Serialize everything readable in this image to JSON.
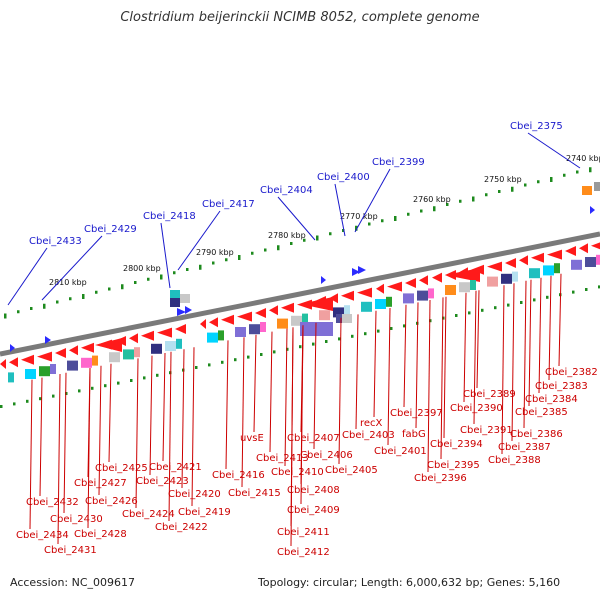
{
  "title": "Clostridium beijerinckii NCIMB 8052, complete genome",
  "footer": {
    "accession": "Accession: NC_009617",
    "summary": "Topology: circular; Length: 6,000,632 bp; Genes: 5,160"
  },
  "ruler_ticks": [
    "2740 kbp",
    "2750 kbp",
    "2760 kbp",
    "2770 kbp",
    "2780 kbp",
    "2790 kbp",
    "2800 kbp",
    "2810 kbp"
  ],
  "upper_labels": [
    "Cbei_2375",
    "Cbei_2399",
    "Cbei_2400",
    "Cbei_2404",
    "Cbei_2417",
    "Cbei_2418",
    "Cbei_2429",
    "Cbei_2433"
  ],
  "lower_labels": [
    "Cbei_2382",
    "Cbei_2383",
    "Cbei_2384",
    "Cbei_2385",
    "Cbei_2386",
    "Cbei_2387",
    "Cbei_2388",
    "Cbei_2389",
    "Cbei_2390",
    "Cbei_2391",
    "Cbei_2394",
    "Cbei_2395",
    "Cbei_2396",
    "fabG",
    "Cbei_2397",
    "recX",
    "Cbei_2403",
    "Cbei_2401",
    "Cbei_2405",
    "Cbei_2406",
    "Cbei_2407",
    "Cbei_2408",
    "Cbei_2409",
    "Cbei_2410",
    "Cbei_2411",
    "Cbei_2412",
    "Cbei_2413",
    "uvsE",
    "Cbei_2415",
    "Cbei_2416",
    "Cbei_2419",
    "Cbei_2420",
    "Cbei_2421",
    "Cbei_2422",
    "Cbei_2423",
    "Cbei_2424",
    "Cbei_2425",
    "Cbei_2426",
    "Cbei_2427",
    "Cbei_2428",
    "Cbei_2430",
    "Cbei_2431",
    "Cbei_2432",
    "Cbei_2434"
  ],
  "colors": {
    "forward_gene": "#2b2bff",
    "reverse_gene": "#ff1a1a",
    "backbone": "#7a7a7a",
    "ruler_dot": "#1d8a1d",
    "upper_label": "#1a1acc",
    "lower_label": "#cc0000"
  }
}
